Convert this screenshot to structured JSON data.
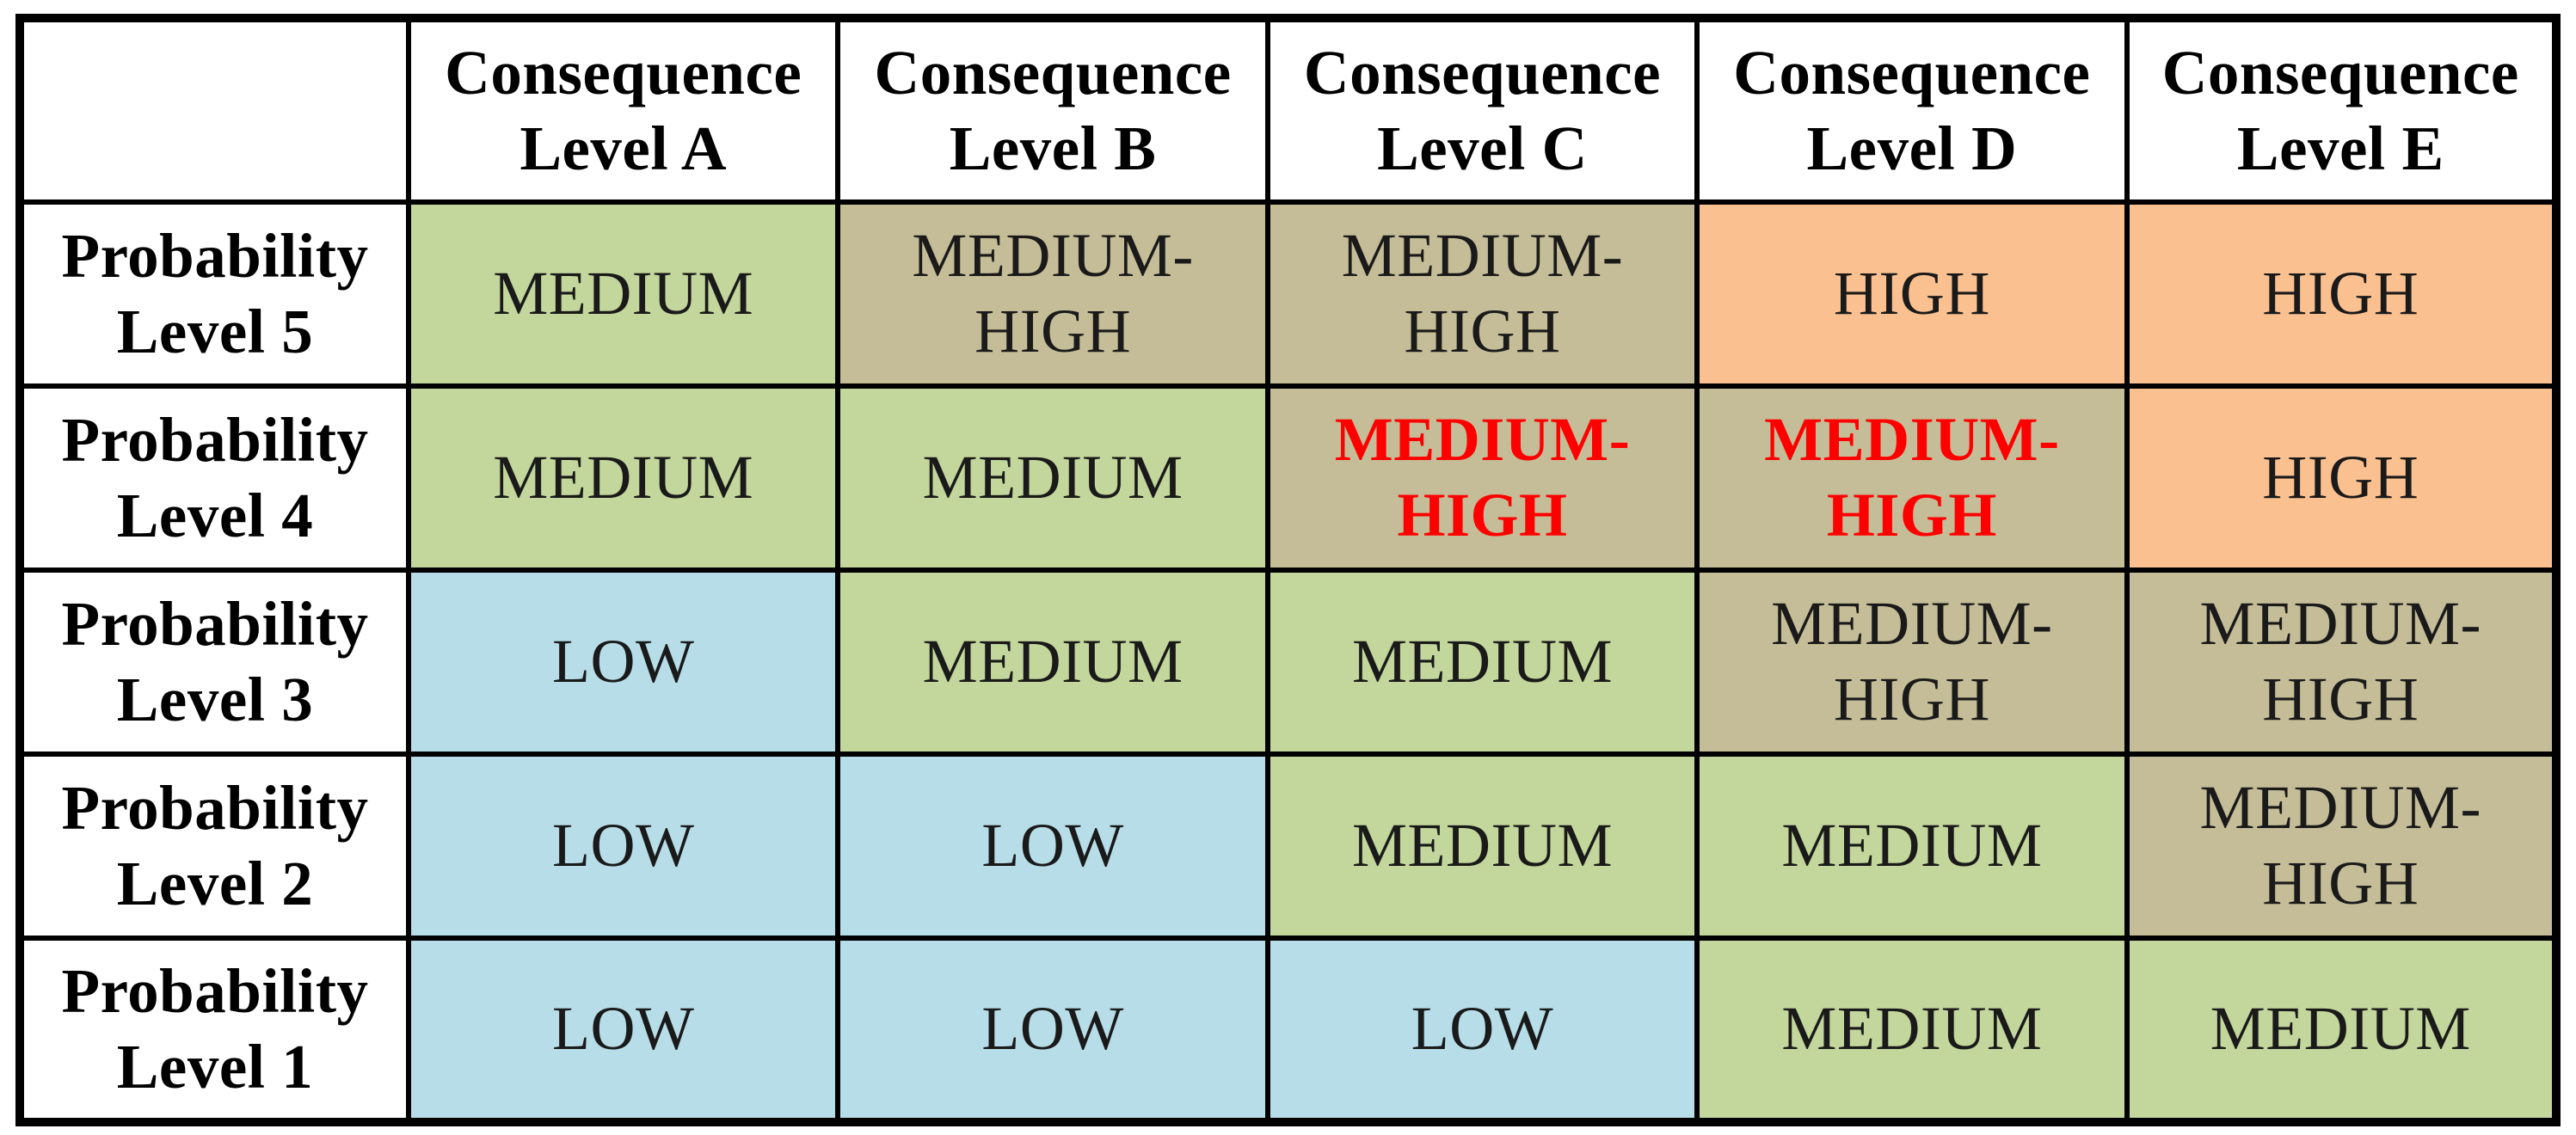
{
  "palette": {
    "low": "#b7dee8",
    "medium": "#c3d69b",
    "medium_high": "#c4bd97",
    "high": "#fac090",
    "red_text": "#ff0000",
    "grid_border": "#000000",
    "header_bg": "#ffffff"
  },
  "table": {
    "corner": "",
    "columns": [
      {
        "l1": "Consequence",
        "l2": "Level A"
      },
      {
        "l1": "Consequence",
        "l2": "Level B"
      },
      {
        "l1": "Consequence",
        "l2": "Level C"
      },
      {
        "l1": "Consequence",
        "l2": "Level D"
      },
      {
        "l1": "Consequence",
        "l2": "Level E"
      }
    ],
    "rows": [
      {
        "label": {
          "l1": "Probability",
          "l2": "Level 5"
        },
        "cells": [
          {
            "text": "MEDIUM",
            "level": "medium"
          },
          {
            "text": "MEDIUM-\nHIGH",
            "level": "medium_high"
          },
          {
            "text": "MEDIUM-\nHIGH",
            "level": "medium_high"
          },
          {
            "text": "HIGH",
            "level": "high"
          },
          {
            "text": "HIGH",
            "level": "high"
          }
        ]
      },
      {
        "label": {
          "l1": "Probability",
          "l2": "Level 4"
        },
        "cells": [
          {
            "text": "MEDIUM",
            "level": "medium"
          },
          {
            "text": "MEDIUM",
            "level": "medium"
          },
          {
            "text": "MEDIUM-\nHIGH",
            "level": "medium_high",
            "red": true
          },
          {
            "text": "MEDIUM-\nHIGH",
            "level": "medium_high",
            "red": true
          },
          {
            "text": "HIGH",
            "level": "high"
          }
        ]
      },
      {
        "label": {
          "l1": "Probability",
          "l2": "Level 3"
        },
        "cells": [
          {
            "text": "LOW",
            "level": "low"
          },
          {
            "text": "MEDIUM",
            "level": "medium"
          },
          {
            "text": "MEDIUM",
            "level": "medium"
          },
          {
            "text": "MEDIUM-\nHIGH",
            "level": "medium_high"
          },
          {
            "text": "MEDIUM-\nHIGH",
            "level": "medium_high"
          }
        ]
      },
      {
        "label": {
          "l1": "Probability",
          "l2": "Level 2"
        },
        "cells": [
          {
            "text": "LOW",
            "level": "low"
          },
          {
            "text": "LOW",
            "level": "low"
          },
          {
            "text": "MEDIUM",
            "level": "medium"
          },
          {
            "text": "MEDIUM",
            "level": "medium"
          },
          {
            "text": "MEDIUM-\nHIGH",
            "level": "medium_high"
          }
        ]
      },
      {
        "label": {
          "l1": "Probability",
          "l2": "Level 1"
        },
        "cells": [
          {
            "text": "LOW",
            "level": "low"
          },
          {
            "text": "LOW",
            "level": "low"
          },
          {
            "text": "LOW",
            "level": "low"
          },
          {
            "text": "MEDIUM",
            "level": "medium"
          },
          {
            "text": "MEDIUM",
            "level": "medium"
          }
        ]
      }
    ]
  }
}
